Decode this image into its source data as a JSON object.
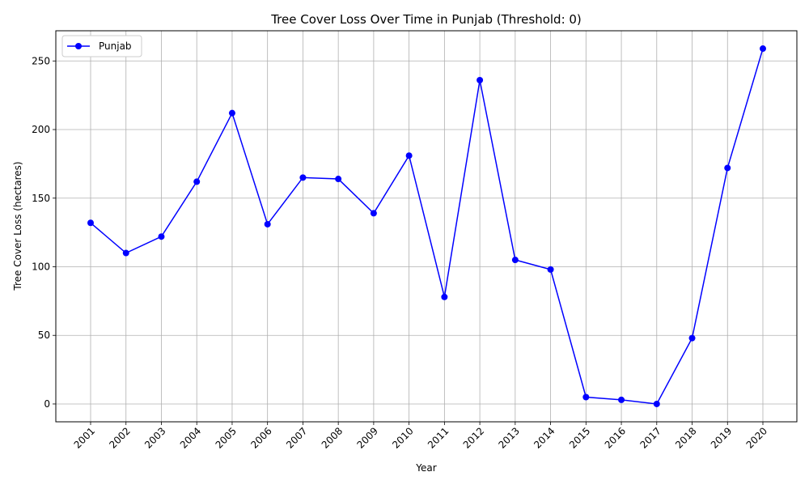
{
  "chart_data": {
    "type": "line",
    "title": "Tree Cover Loss Over Time in Punjab (Threshold: 0)",
    "xlabel": "Year",
    "ylabel": "Tree Cover Loss (hectares)",
    "categories": [
      "2001",
      "2002",
      "2003",
      "2004",
      "2005",
      "2006",
      "2007",
      "2008",
      "2009",
      "2010",
      "2011",
      "2012",
      "2013",
      "2014",
      "2015",
      "2016",
      "2017",
      "2018",
      "2019",
      "2020"
    ],
    "series": [
      {
        "name": "Punjab",
        "color": "#0000ff",
        "marker": "circle",
        "values": [
          132,
          110,
          122,
          162,
          212,
          131,
          165,
          164,
          139,
          181,
          78,
          236,
          105,
          98,
          5,
          3,
          0,
          48,
          172,
          259
        ]
      }
    ],
    "ylim": [
      -13,
      272
    ],
    "yticks": [
      0,
      50,
      100,
      150,
      200,
      250
    ],
    "xtick_rotation_deg": 45,
    "grid": true,
    "legend_position": "upper-left"
  }
}
